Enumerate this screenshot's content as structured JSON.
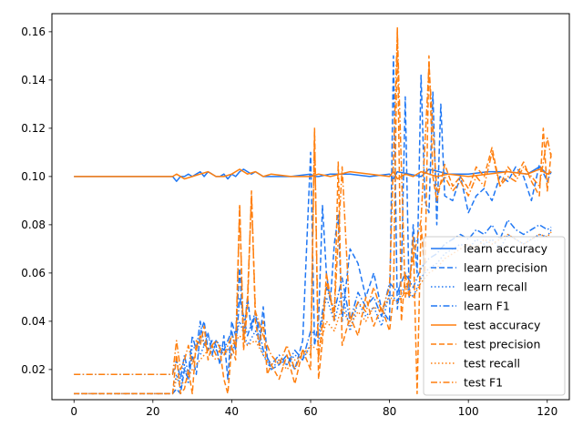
{
  "chart_data": {
    "type": "line",
    "title": "",
    "xlabel": "",
    "ylabel": "",
    "xlim": [
      -5.6,
      125.6
    ],
    "ylim": [
      0.0075,
      0.1675
    ],
    "x_ticks": [
      0,
      20,
      40,
      60,
      80,
      100,
      120
    ],
    "x_tick_labels": [
      "0",
      "20",
      "40",
      "60",
      "80",
      "100",
      "120"
    ],
    "y_ticks": [
      0.02,
      0.04,
      0.06,
      0.08,
      0.1,
      0.12,
      0.14,
      0.16
    ],
    "y_tick_labels": [
      "0.02",
      "0.04",
      "0.06",
      "0.08",
      "0.10",
      "0.12",
      "0.14",
      "0.16"
    ],
    "grid": false,
    "legend_position": "lower-right",
    "colors": {
      "learn": "#1f77f4",
      "test": "#ff7f0e"
    },
    "series": [
      {
        "name": "learn accuracy",
        "color": "#1f77f4",
        "dash": "solid",
        "x": [
          0,
          10,
          20,
          25,
          26,
          27,
          28,
          29,
          30,
          31,
          32,
          33,
          34,
          35,
          36,
          37,
          38,
          39,
          40,
          41,
          42,
          43,
          44,
          45,
          46,
          47,
          48,
          49,
          50,
          55,
          60,
          61,
          62,
          65,
          70,
          75,
          80,
          81,
          82,
          85,
          88,
          90,
          95,
          100,
          105,
          110,
          115,
          118,
          120,
          121
        ],
        "y": [
          0.1,
          0.1,
          0.1,
          0.1,
          0.098,
          0.1,
          0.1,
          0.101,
          0.1,
          0.101,
          0.102,
          0.1,
          0.102,
          0.101,
          0.1,
          0.1,
          0.101,
          0.099,
          0.101,
          0.1,
          0.102,
          0.103,
          0.102,
          0.101,
          0.102,
          0.101,
          0.1,
          0.1,
          0.1,
          0.1,
          0.101,
          0.1,
          0.1,
          0.101,
          0.101,
          0.1,
          0.101,
          0.099,
          0.102,
          0.101,
          0.1,
          0.103,
          0.101,
          0.101,
          0.102,
          0.102,
          0.101,
          0.104,
          0.101,
          0.102
        ]
      },
      {
        "name": "learn precision",
        "color": "#1f77f4",
        "dash": "dashed",
        "x": [
          0,
          10,
          20,
          25,
          26,
          27,
          28,
          29,
          30,
          31,
          32,
          33,
          34,
          35,
          36,
          37,
          38,
          39,
          40,
          41,
          42,
          43,
          44,
          45,
          46,
          47,
          48,
          49,
          50,
          52,
          54,
          56,
          58,
          60,
          61,
          62,
          63,
          64,
          65,
          66,
          67,
          68,
          70,
          72,
          74,
          76,
          78,
          80,
          81,
          82,
          83,
          84,
          85,
          86,
          87,
          88,
          89,
          90,
          91,
          92,
          93,
          94,
          96,
          98,
          100,
          102,
          104,
          106,
          108,
          110,
          112,
          114,
          116,
          118,
          120,
          121
        ],
        "y": [
          0.01,
          0.01,
          0.01,
          0.01,
          0.012,
          0.01,
          0.02,
          0.016,
          0.026,
          0.018,
          0.035,
          0.04,
          0.028,
          0.032,
          0.03,
          0.022,
          0.034,
          0.016,
          0.04,
          0.034,
          0.062,
          0.034,
          0.05,
          0.036,
          0.044,
          0.03,
          0.046,
          0.025,
          0.02,
          0.022,
          0.026,
          0.02,
          0.032,
          0.11,
          0.03,
          0.04,
          0.088,
          0.06,
          0.048,
          0.072,
          0.084,
          0.04,
          0.07,
          0.064,
          0.05,
          0.06,
          0.045,
          0.04,
          0.15,
          0.045,
          0.06,
          0.133,
          0.05,
          0.08,
          0.06,
          0.142,
          0.09,
          0.085,
          0.135,
          0.08,
          0.13,
          0.092,
          0.09,
          0.1,
          0.085,
          0.092,
          0.095,
          0.09,
          0.1,
          0.098,
          0.104,
          0.1,
          0.09,
          0.105,
          0.098,
          0.102
        ]
      },
      {
        "name": "learn recall",
        "color": "#1f77f4",
        "dash": "dotted",
        "x": [
          0,
          10,
          20,
          25,
          26,
          27,
          28,
          29,
          30,
          32,
          34,
          36,
          38,
          40,
          42,
          44,
          46,
          48,
          50,
          52,
          54,
          56,
          58,
          60,
          62,
          64,
          66,
          68,
          70,
          72,
          74,
          76,
          78,
          80,
          82,
          84,
          86,
          88,
          90,
          92,
          94,
          96,
          98,
          100,
          102,
          104,
          106,
          108,
          110,
          112,
          114,
          116,
          118,
          120,
          121
        ],
        "y": [
          0.01,
          0.01,
          0.01,
          0.01,
          0.018,
          0.012,
          0.022,
          0.014,
          0.03,
          0.026,
          0.034,
          0.028,
          0.03,
          0.026,
          0.04,
          0.03,
          0.036,
          0.026,
          0.02,
          0.024,
          0.022,
          0.026,
          0.024,
          0.03,
          0.032,
          0.05,
          0.04,
          0.052,
          0.036,
          0.048,
          0.042,
          0.046,
          0.038,
          0.052,
          0.048,
          0.055,
          0.05,
          0.058,
          0.062,
          0.064,
          0.068,
          0.07,
          0.072,
          0.07,
          0.074,
          0.072,
          0.074,
          0.07,
          0.076,
          0.074,
          0.072,
          0.074,
          0.076,
          0.075,
          0.078
        ]
      },
      {
        "name": "learn F1",
        "color": "#1f77f4",
        "dash": "dashdot",
        "x": [
          0,
          10,
          20,
          25,
          26,
          27,
          28,
          29,
          30,
          31,
          32,
          33,
          34,
          35,
          36,
          38,
          40,
          41,
          42,
          44,
          46,
          48,
          50,
          52,
          54,
          56,
          58,
          60,
          62,
          64,
          66,
          68,
          70,
          72,
          74,
          76,
          78,
          80,
          82,
          84,
          86,
          88,
          90,
          92,
          94,
          96,
          98,
          100,
          102,
          104,
          106,
          108,
          110,
          112,
          114,
          116,
          118,
          120,
          121
        ],
        "y": [
          0.018,
          0.018,
          0.018,
          0.018,
          0.024,
          0.016,
          0.026,
          0.018,
          0.034,
          0.028,
          0.04,
          0.03,
          0.035,
          0.026,
          0.032,
          0.028,
          0.036,
          0.028,
          0.05,
          0.034,
          0.044,
          0.028,
          0.022,
          0.026,
          0.022,
          0.028,
          0.024,
          0.036,
          0.034,
          0.054,
          0.044,
          0.058,
          0.04,
          0.052,
          0.046,
          0.05,
          0.042,
          0.056,
          0.052,
          0.06,
          0.054,
          0.062,
          0.066,
          0.068,
          0.072,
          0.074,
          0.076,
          0.074,
          0.078,
          0.076,
          0.08,
          0.074,
          0.082,
          0.078,
          0.076,
          0.078,
          0.08,
          0.078,
          0.079
        ]
      },
      {
        "name": "test accuracy",
        "color": "#ff7f0e",
        "dash": "solid",
        "x": [
          0,
          10,
          20,
          25,
          26,
          28,
          30,
          32,
          34,
          36,
          38,
          40,
          42,
          44,
          46,
          48,
          50,
          55,
          60,
          62,
          65,
          70,
          75,
          80,
          81,
          82,
          84,
          86,
          88,
          90,
          92,
          95,
          100,
          105,
          110,
          115,
          118,
          120,
          121
        ],
        "y": [
          0.1,
          0.1,
          0.1,
          0.1,
          0.101,
          0.099,
          0.1,
          0.101,
          0.102,
          0.1,
          0.1,
          0.101,
          0.103,
          0.101,
          0.102,
          0.1,
          0.101,
          0.1,
          0.1,
          0.101,
          0.1,
          0.102,
          0.101,
          0.1,
          0.102,
          0.099,
          0.101,
          0.1,
          0.102,
          0.101,
          0.1,
          0.101,
          0.1,
          0.101,
          0.102,
          0.101,
          0.103,
          0.101,
          0.102
        ]
      },
      {
        "name": "test precision",
        "color": "#ff7f0e",
        "dash": "dashed",
        "x": [
          0,
          10,
          20,
          25,
          26,
          27,
          28,
          29,
          30,
          31,
          32,
          33,
          34,
          35,
          36,
          37,
          38,
          39,
          40,
          41,
          42,
          43,
          44,
          45,
          46,
          47,
          48,
          49,
          50,
          52,
          54,
          56,
          58,
          60,
          61,
          62,
          63,
          64,
          66,
          67,
          68,
          70,
          72,
          74,
          76,
          78,
          80,
          81,
          82,
          83,
          84,
          85,
          86,
          87,
          88,
          89,
          90,
          91,
          92,
          94,
          96,
          98,
          100,
          102,
          104,
          106,
          108,
          110,
          112,
          114,
          116,
          118,
          119,
          120,
          121
        ],
        "y": [
          0.01,
          0.01,
          0.01,
          0.01,
          0.026,
          0.01,
          0.012,
          0.02,
          0.01,
          0.032,
          0.03,
          0.038,
          0.024,
          0.03,
          0.026,
          0.028,
          0.016,
          0.01,
          0.03,
          0.024,
          0.088,
          0.028,
          0.046,
          0.094,
          0.04,
          0.03,
          0.04,
          0.018,
          0.022,
          0.016,
          0.026,
          0.014,
          0.028,
          0.02,
          0.12,
          0.016,
          0.032,
          0.06,
          0.04,
          0.106,
          0.03,
          0.042,
          0.034,
          0.05,
          0.038,
          0.046,
          0.036,
          0.05,
          0.162,
          0.04,
          0.06,
          0.05,
          0.075,
          0.01,
          0.08,
          0.06,
          0.15,
          0.1,
          0.09,
          0.105,
          0.096,
          0.1,
          0.095,
          0.104,
          0.1,
          0.112,
          0.096,
          0.104,
          0.1,
          0.106,
          0.098,
          0.092,
          0.12,
          0.094,
          0.11
        ]
      },
      {
        "name": "test recall",
        "color": "#ff7f0e",
        "dash": "dotted",
        "x": [
          0,
          10,
          20,
          25,
          26,
          28,
          30,
          32,
          34,
          36,
          38,
          40,
          42,
          44,
          46,
          48,
          50,
          52,
          54,
          56,
          58,
          60,
          62,
          64,
          66,
          68,
          70,
          72,
          74,
          76,
          78,
          80,
          82,
          84,
          86,
          88,
          90,
          92,
          94,
          96,
          98,
          100,
          102,
          104,
          106,
          108,
          110,
          112,
          114,
          116,
          118,
          120,
          121
        ],
        "y": [
          0.01,
          0.01,
          0.01,
          0.01,
          0.016,
          0.014,
          0.02,
          0.024,
          0.028,
          0.024,
          0.026,
          0.03,
          0.034,
          0.03,
          0.032,
          0.026,
          0.022,
          0.024,
          0.02,
          0.024,
          0.026,
          0.03,
          0.028,
          0.04,
          0.036,
          0.046,
          0.038,
          0.044,
          0.04,
          0.046,
          0.044,
          0.05,
          0.048,
          0.052,
          0.05,
          0.056,
          0.06,
          0.062,
          0.066,
          0.068,
          0.07,
          0.072,
          0.07,
          0.074,
          0.072,
          0.074,
          0.076,
          0.074,
          0.072,
          0.074,
          0.076,
          0.075,
          0.077
        ]
      },
      {
        "name": "test F1",
        "color": "#ff7f0e",
        "dash": "dashdot",
        "x": [
          0,
          10,
          20,
          25,
          26,
          27,
          28,
          29,
          30,
          32,
          34,
          36,
          38,
          40,
          41,
          42,
          43,
          44,
          45,
          46,
          48,
          50,
          52,
          54,
          56,
          58,
          60,
          61,
          62,
          64,
          66,
          68,
          70,
          72,
          74,
          76,
          78,
          80,
          82,
          84,
          86,
          88,
          90,
          92,
          94,
          96,
          98,
          100,
          102,
          104,
          106,
          108,
          110,
          112,
          114,
          116,
          118,
          120,
          121
        ],
        "y": [
          0.018,
          0.018,
          0.018,
          0.018,
          0.032,
          0.02,
          0.024,
          0.03,
          0.022,
          0.034,
          0.028,
          0.032,
          0.026,
          0.034,
          0.03,
          0.088,
          0.032,
          0.05,
          0.092,
          0.044,
          0.034,
          0.026,
          0.022,
          0.03,
          0.02,
          0.028,
          0.026,
          0.118,
          0.024,
          0.056,
          0.044,
          0.104,
          0.04,
          0.048,
          0.044,
          0.054,
          0.044,
          0.054,
          0.16,
          0.05,
          0.066,
          0.082,
          0.146,
          0.094,
          0.1,
          0.094,
          0.098,
          0.092,
          0.1,
          0.096,
          0.11,
          0.096,
          0.1,
          0.098,
          0.104,
          0.1,
          0.096,
          0.116,
          0.108
        ]
      }
    ]
  }
}
